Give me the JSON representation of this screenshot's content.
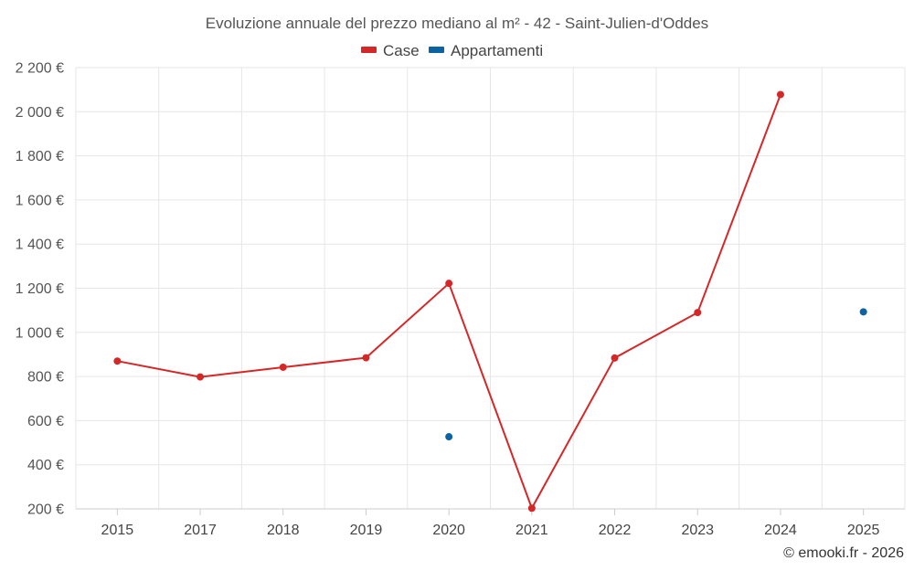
{
  "chart_data": {
    "type": "line",
    "title": "Evoluzione annuale del prezzo mediano al m² - 42 - Saint-Julien-d'Oddes",
    "categories": [
      "2015",
      "2017",
      "2018",
      "2019",
      "2020",
      "2021",
      "2022",
      "2023",
      "2024",
      "2025"
    ],
    "ylim": [
      200,
      2200
    ],
    "yticks": [
      200,
      400,
      600,
      800,
      1000,
      1200,
      1400,
      1600,
      1800,
      2000,
      2200
    ],
    "ytick_labels": [
      "200 €",
      "400 €",
      "600 €",
      "800 €",
      "1 000 €",
      "1 200 €",
      "1 400 €",
      "1 600 €",
      "1 800 €",
      "2 000 €",
      "2 200 €"
    ],
    "xlabel": "",
    "ylabel": "",
    "grid": true,
    "legend_position": "top-center",
    "series": [
      {
        "name": "Case",
        "color": "#d62728",
        "values": [
          870,
          798,
          842,
          885,
          1222,
          203,
          884,
          1090,
          2078,
          null
        ]
      },
      {
        "name": "Appartamenti",
        "color": "#0b63a3",
        "values": [
          null,
          null,
          null,
          null,
          527,
          null,
          null,
          null,
          null,
          1093
        ]
      }
    ]
  },
  "footer": {
    "credit": "© emooki.fr - 2026"
  }
}
